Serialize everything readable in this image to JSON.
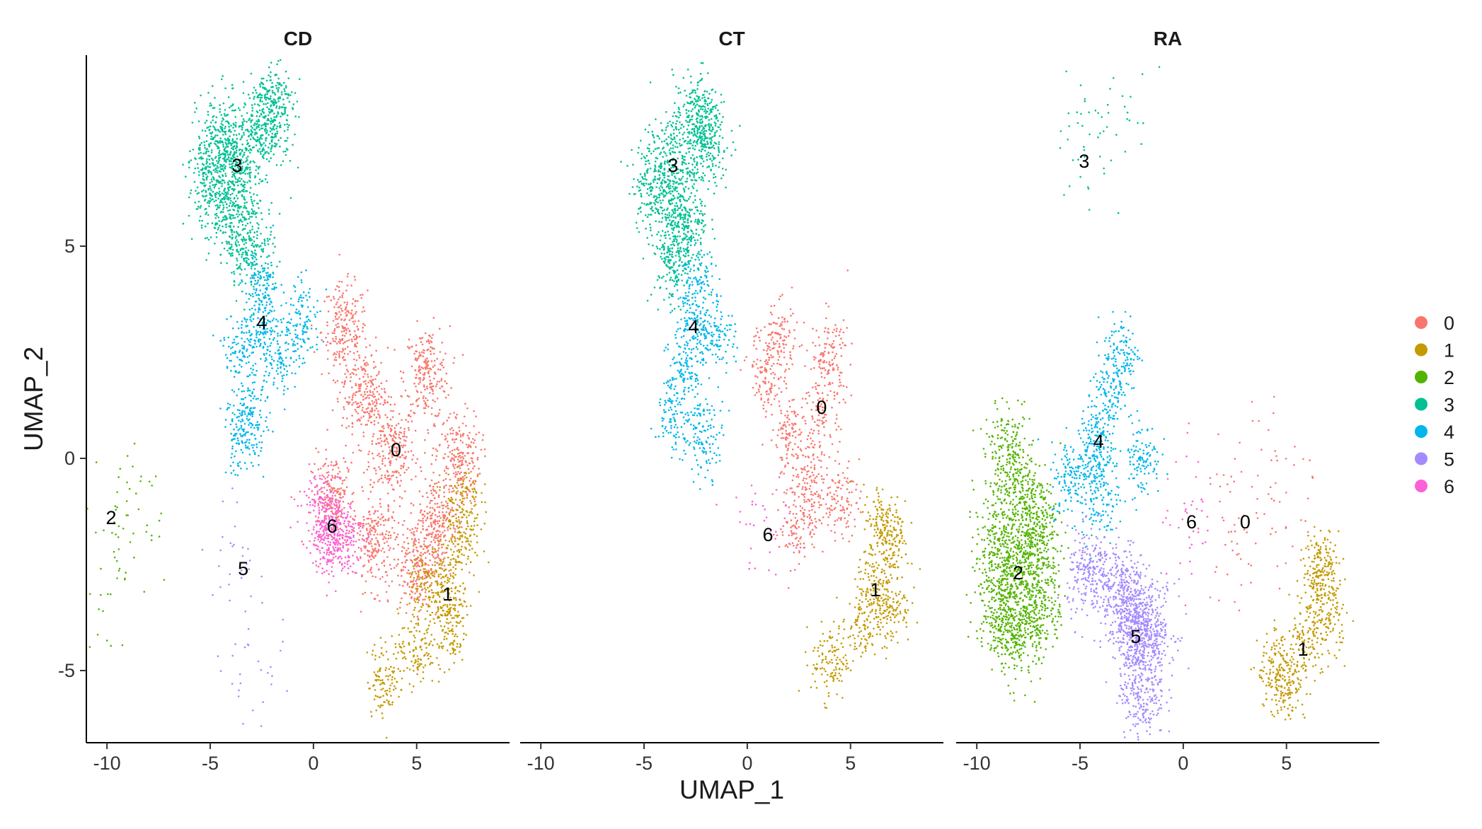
{
  "chart_data": {
    "type": "scatter",
    "subtype": "umap-faceted",
    "facets": [
      "CD",
      "CT",
      "RA"
    ],
    "xlabel": "UMAP_1",
    "ylabel": "UMAP_2",
    "xlim": [
      -11,
      9.5
    ],
    "ylim": [
      -6.7,
      9.5
    ],
    "xticks": [
      -10,
      -5,
      0,
      5
    ],
    "xtick_labels": [
      "-10",
      "-5",
      "0",
      "5"
    ],
    "yticks": [
      -5,
      0,
      5
    ],
    "ytick_labels": [
      "-5",
      "0",
      "5"
    ],
    "grid": false,
    "legend_position": "right",
    "legend": [
      {
        "label": "0",
        "color": "#F8766D"
      },
      {
        "label": "1",
        "color": "#C49A00"
      },
      {
        "label": "2",
        "color": "#53B400"
      },
      {
        "label": "3",
        "color": "#00C094"
      },
      {
        "label": "4",
        "color": "#00B6EB"
      },
      {
        "label": "5",
        "color": "#A58AFF"
      },
      {
        "label": "6",
        "color": "#FB61D7"
      }
    ],
    "clusters": [
      {
        "facet": "CD",
        "cluster": "0",
        "label_x": 4.0,
        "label_y": 0.2,
        "density": "high",
        "points": [
          [
            3.8,
            0.2
          ],
          [
            1.5,
            3.0
          ],
          [
            5.5,
            2.0
          ],
          [
            7.0,
            0.0
          ],
          [
            1.0,
            -1.0
          ],
          [
            3.0,
            -2.0
          ],
          [
            5.0,
            -2.5
          ],
          [
            2.5,
            1.5
          ],
          [
            6.0,
            -1.5
          ]
        ]
      },
      {
        "facet": "CD",
        "cluster": "1",
        "label_x": 6.5,
        "label_y": -3.2,
        "density": "medium",
        "points": [
          [
            6.5,
            -3.2
          ],
          [
            7.0,
            -2.0
          ],
          [
            6.5,
            -4.0
          ],
          [
            5.0,
            -4.5
          ],
          [
            3.5,
            -5.2
          ],
          [
            7.2,
            -1.0
          ],
          [
            5.5,
            -3.0
          ]
        ]
      },
      {
        "facet": "CD",
        "cluster": "2",
        "label_x": -9.8,
        "label_y": -1.4,
        "density": "sparse",
        "points": [
          [
            -9.8,
            -1.4
          ],
          [
            -8.5,
            -0.5
          ],
          [
            -9.5,
            -2.5
          ],
          [
            -10.0,
            -3.5
          ],
          [
            -8.0,
            -2.0
          ]
        ]
      },
      {
        "facet": "CD",
        "cluster": "3",
        "label_x": -3.7,
        "label_y": 6.9,
        "density": "high",
        "points": [
          [
            -3.7,
            6.9
          ],
          [
            -2.5,
            7.8
          ],
          [
            -4.5,
            7.5
          ],
          [
            -4.0,
            5.8
          ],
          [
            -3.0,
            5.0
          ],
          [
            -2.0,
            8.2
          ],
          [
            -5.0,
            6.5
          ]
        ]
      },
      {
        "facet": "CD",
        "cluster": "4",
        "label_x": -2.5,
        "label_y": 3.2,
        "density": "medium",
        "points": [
          [
            -2.5,
            3.2
          ],
          [
            -0.5,
            3.2
          ],
          [
            -3.5,
            2.5
          ],
          [
            -3.0,
            1.0
          ],
          [
            -2.5,
            4.0
          ],
          [
            -3.5,
            0.5
          ],
          [
            -1.5,
            2.5
          ]
        ]
      },
      {
        "facet": "CD",
        "cluster": "5",
        "label_x": -3.4,
        "label_y": -2.6,
        "density": "sparse",
        "points": [
          [
            -3.4,
            -2.6
          ],
          [
            -4.0,
            -2.2
          ],
          [
            -2.5,
            -5.5
          ],
          [
            -3.0,
            -5.3
          ]
        ]
      },
      {
        "facet": "CD",
        "cluster": "6",
        "label_x": 0.9,
        "label_y": -1.6,
        "density": "medium",
        "points": [
          [
            0.9,
            -1.6
          ],
          [
            0.3,
            -1.2
          ],
          [
            1.5,
            -1.8
          ],
          [
            0.8,
            -2.0
          ]
        ]
      },
      {
        "facet": "CT",
        "cluster": "0",
        "label_x": 3.6,
        "label_y": 1.2,
        "density": "medium",
        "points": [
          [
            3.6,
            1.2
          ],
          [
            1.5,
            2.8
          ],
          [
            4.0,
            2.5
          ],
          [
            2.0,
            0.5
          ],
          [
            3.0,
            -0.5
          ],
          [
            4.5,
            -1.0
          ],
          [
            2.5,
            -1.5
          ],
          [
            1.0,
            2.0
          ]
        ]
      },
      {
        "facet": "CT",
        "cluster": "1",
        "label_x": 6.2,
        "label_y": -3.1,
        "density": "medium",
        "points": [
          [
            6.2,
            -3.1
          ],
          [
            7.0,
            -2.0
          ],
          [
            5.5,
            -4.0
          ],
          [
            4.0,
            -4.8
          ],
          [
            6.5,
            -1.5
          ],
          [
            7.0,
            -3.5
          ]
        ]
      },
      {
        "facet": "CT",
        "cluster": "3",
        "label_x": -3.6,
        "label_y": 6.9,
        "density": "high",
        "points": [
          [
            -3.6,
            6.9
          ],
          [
            -2.5,
            8.0
          ],
          [
            -4.5,
            6.5
          ],
          [
            -3.0,
            5.5
          ],
          [
            -2.0,
            7.5
          ],
          [
            -3.5,
            4.8
          ]
        ]
      },
      {
        "facet": "CT",
        "cluster": "4",
        "label_x": -2.6,
        "label_y": 3.1,
        "density": "medium",
        "points": [
          [
            -2.6,
            3.1
          ],
          [
            -3.0,
            2.0
          ],
          [
            -2.5,
            4.0
          ],
          [
            -3.5,
            1.0
          ],
          [
            -2.0,
            0.5
          ],
          [
            -1.5,
            3.0
          ]
        ]
      },
      {
        "facet": "CT",
        "cluster": "6",
        "label_x": 1.0,
        "label_y": -1.8,
        "density": "sparse",
        "points": [
          [
            1.0,
            -1.8
          ],
          [
            0.2,
            -1.3
          ],
          [
            2.0,
            -2.0
          ]
        ]
      },
      {
        "facet": "RA",
        "cluster": "0",
        "label_x": 3.0,
        "label_y": -1.5,
        "density": "sparse",
        "points": [
          [
            3.0,
            -1.5
          ],
          [
            1.5,
            -0.5
          ],
          [
            4.0,
            0.5
          ],
          [
            5.0,
            -0.5
          ],
          [
            2.5,
            -2.5
          ],
          [
            4.5,
            -2.0
          ]
        ]
      },
      {
        "facet": "RA",
        "cluster": "1",
        "label_x": 5.8,
        "label_y": -4.5,
        "density": "medium",
        "points": [
          [
            5.8,
            -4.5
          ],
          [
            6.5,
            -3.0
          ],
          [
            6.8,
            -2.5
          ],
          [
            5.0,
            -5.3
          ],
          [
            4.5,
            -5.0
          ],
          [
            7.0,
            -3.8
          ]
        ]
      },
      {
        "facet": "RA",
        "cluster": "2",
        "label_x": -8.0,
        "label_y": -2.7,
        "density": "high",
        "points": [
          [
            -8.0,
            -2.7
          ],
          [
            -7.5,
            -1.0
          ],
          [
            -8.5,
            0.0
          ],
          [
            -9.0,
            -3.5
          ],
          [
            -8.0,
            -4.2
          ],
          [
            -7.0,
            -2.0
          ],
          [
            -9.0,
            -2.0
          ],
          [
            -7.0,
            -3.5
          ]
        ]
      },
      {
        "facet": "RA",
        "cluster": "3",
        "label_x": -4.8,
        "label_y": 7.0,
        "density": "sparse",
        "points": [
          [
            -4.8,
            7.0
          ],
          [
            -5.0,
            7.8
          ],
          [
            -3.5,
            8.0
          ],
          [
            -2.5,
            8.3
          ]
        ]
      },
      {
        "facet": "RA",
        "cluster": "4",
        "label_x": -4.1,
        "label_y": 0.4,
        "density": "medium",
        "points": [
          [
            -4.1,
            0.4
          ],
          [
            -3.5,
            1.5
          ],
          [
            -4.5,
            0.0
          ],
          [
            -3.0,
            2.5
          ],
          [
            -5.5,
            -0.5
          ],
          [
            -2.0,
            0.0
          ],
          [
            -4.0,
            -1.0
          ]
        ]
      },
      {
        "facet": "RA",
        "cluster": "5",
        "label_x": -2.3,
        "label_y": -4.2,
        "density": "high",
        "points": [
          [
            -2.3,
            -4.2
          ],
          [
            -2.0,
            -5.5
          ],
          [
            -3.0,
            -3.0
          ],
          [
            -4.5,
            -2.8
          ],
          [
            -1.5,
            -4.0
          ],
          [
            -2.5,
            -3.8
          ]
        ]
      },
      {
        "facet": "RA",
        "cluster": "6",
        "label_x": 0.4,
        "label_y": -1.5,
        "density": "sparse",
        "points": [
          [
            0.4,
            -1.5
          ],
          [
            0.2,
            -1.0
          ],
          [
            0.6,
            -2.0
          ]
        ]
      }
    ]
  }
}
